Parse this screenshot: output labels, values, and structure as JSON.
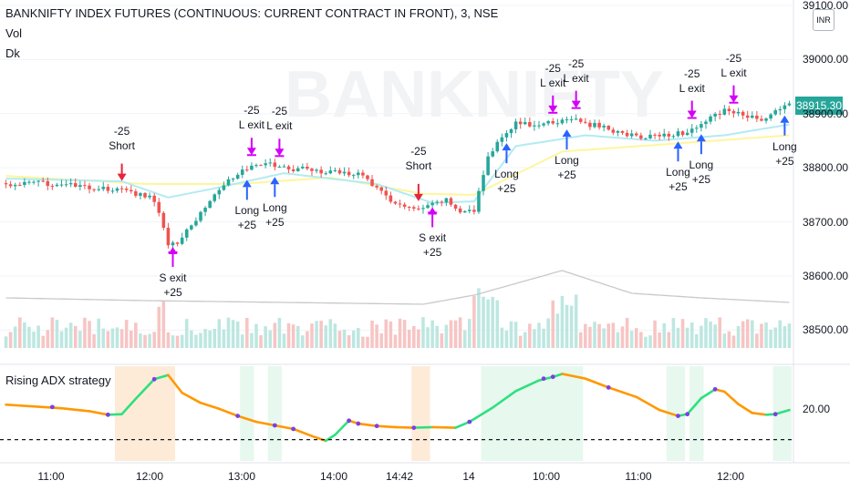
{
  "header": {
    "title": "BANKNIFTY INDEX FUTURES (CONTINUOUS: CURRENT CONTRACT IN FRONT), 3, NSE",
    "vol_label": "Vol",
    "dk_label": "Dk",
    "currency": "INR",
    "watermark": "BANKNIFTY"
  },
  "indicator": {
    "title": "Rising ADX strategy"
  },
  "last_price": "38915.30",
  "colors": {
    "up": "#26a69a",
    "down": "#ef5350",
    "ma_cyan": "#b2ebf2",
    "ma_yellow": "#fff59d",
    "adx_up": "#2ee07f",
    "adx_down": "#ff9800",
    "adx_dot": "#7b3fe4",
    "bg_green": "#e7f8ee",
    "bg_orange": "#fdebd8",
    "arrow_red": "#e8253a",
    "arrow_blue": "#2962ff",
    "arrow_magenta": "#d500f9",
    "price_tag": "#26a69a"
  },
  "chart_data": {
    "type": "candlestick",
    "symbol": "BANKNIFTY1!",
    "timeframe": "3",
    "y_axis": {
      "ticks": [
        "38500.00",
        "38600.00",
        "38700.00",
        "38800.00",
        "38900.00",
        "39000.00",
        "39100.00"
      ],
      "ylim": [
        38430,
        39110
      ]
    },
    "x_axis": {
      "ticks": [
        "11:00",
        "12:00",
        "13:00",
        "14:00",
        "14:42",
        "14",
        "10:00",
        "11:00",
        "12:00"
      ]
    },
    "close_path": [
      [
        0,
        38768
      ],
      [
        6,
        38772
      ],
      [
        12,
        38770
      ],
      [
        18,
        38762
      ],
      [
        24,
        38760
      ],
      [
        28,
        38752
      ],
      [
        31,
        38748
      ],
      [
        33,
        38720
      ],
      [
        35,
        38660
      ],
      [
        37,
        38660
      ],
      [
        39,
        38690
      ],
      [
        41,
        38705
      ],
      [
        44,
        38740
      ],
      [
        47,
        38770
      ],
      [
        50,
        38790
      ],
      [
        53,
        38800
      ],
      [
        56,
        38810
      ],
      [
        59,
        38800
      ],
      [
        62,
        38798
      ],
      [
        65,
        38800
      ],
      [
        68,
        38790
      ],
      [
        71,
        38798
      ],
      [
        74,
        38785
      ],
      [
        77,
        38790
      ],
      [
        80,
        38760
      ],
      [
        83,
        38740
      ],
      [
        86,
        38728
      ],
      [
        89,
        38720
      ],
      [
        92,
        38732
      ],
      [
        95,
        38740
      ],
      [
        98,
        38720
      ],
      [
        101,
        38720
      ],
      [
        104,
        38820
      ],
      [
        107,
        38860
      ],
      [
        110,
        38882
      ],
      [
        113,
        38880
      ],
      [
        116,
        38880
      ],
      [
        119,
        38885
      ],
      [
        122,
        38892
      ],
      [
        125,
        38880
      ],
      [
        128,
        38878
      ],
      [
        131,
        38868
      ],
      [
        134,
        38862
      ],
      [
        137,
        38855
      ],
      [
        140,
        38860
      ],
      [
        143,
        38862
      ],
      [
        146,
        38865
      ],
      [
        149,
        38870
      ],
      [
        152,
        38895
      ],
      [
        155,
        38905
      ],
      [
        158,
        38900
      ],
      [
        161,
        38892
      ],
      [
        163,
        38890
      ],
      [
        166,
        38905
      ],
      [
        169,
        38915
      ]
    ],
    "ma_fast_path": [
      [
        0,
        38780
      ],
      [
        25,
        38775
      ],
      [
        35,
        38745
      ],
      [
        45,
        38762
      ],
      [
        60,
        38790
      ],
      [
        80,
        38770
      ],
      [
        92,
        38735
      ],
      [
        101,
        38738
      ],
      [
        110,
        38840
      ],
      [
        125,
        38860
      ],
      [
        140,
        38850
      ],
      [
        155,
        38860
      ],
      [
        169,
        38880
      ]
    ],
    "ma_slow_path": [
      [
        0,
        38785
      ],
      [
        30,
        38770
      ],
      [
        50,
        38770
      ],
      [
        70,
        38782
      ],
      [
        90,
        38752
      ],
      [
        101,
        38750
      ],
      [
        120,
        38830
      ],
      [
        140,
        38842
      ],
      [
        169,
        38860
      ]
    ],
    "volume_ma_path": [
      [
        0,
        55
      ],
      [
        30,
        52
      ],
      [
        60,
        50
      ],
      [
        90,
        48
      ],
      [
        101,
        58
      ],
      [
        120,
        85
      ],
      [
        135,
        60
      ],
      [
        150,
        55
      ],
      [
        169,
        50
      ]
    ],
    "adx_range": [
      10,
      26
    ],
    "adx_path": [
      [
        0,
        19.5
      ],
      [
        6,
        19.2
      ],
      [
        12,
        18.9
      ],
      [
        18,
        18.4
      ],
      [
        22,
        17.8
      ],
      [
        25,
        17.9
      ],
      [
        28,
        20.5
      ],
      [
        32,
        23.8
      ],
      [
        35,
        24.5
      ],
      [
        38,
        21.5
      ],
      [
        42,
        19.8
      ],
      [
        46,
        18.8
      ],
      [
        50,
        17.6
      ],
      [
        54,
        16.6
      ],
      [
        58,
        16.0
      ],
      [
        62,
        15.4
      ],
      [
        66,
        14.2
      ],
      [
        69,
        13.4
      ],
      [
        71,
        14.4
      ],
      [
        74,
        16.8
      ],
      [
        76,
        16.3
      ],
      [
        80,
        15.9
      ],
      [
        84,
        15.7
      ],
      [
        88,
        15.6
      ],
      [
        92,
        15.7
      ],
      [
        97,
        15.6
      ],
      [
        100,
        16.6
      ],
      [
        105,
        19.0
      ],
      [
        110,
        21.8
      ],
      [
        115,
        23.6
      ],
      [
        118,
        24.2
      ],
      [
        120,
        24.7
      ],
      [
        125,
        23.9
      ],
      [
        130,
        22.4
      ],
      [
        136,
        20.8
      ],
      [
        141,
        18.6
      ],
      [
        145,
        17.6
      ],
      [
        147,
        17.9
      ],
      [
        150,
        20.6
      ],
      [
        153,
        22.1
      ],
      [
        155,
        21.7
      ],
      [
        158,
        19.6
      ],
      [
        161,
        18.1
      ],
      [
        164,
        17.8
      ],
      [
        166,
        17.9
      ],
      [
        169,
        18.6
      ]
    ],
    "adx_dots": [
      [
        10,
        19.1
      ],
      [
        22,
        17.8
      ],
      [
        32,
        23.8
      ],
      [
        50,
        17.6
      ],
      [
        58,
        16.0
      ],
      [
        62,
        15.4
      ],
      [
        74,
        16.8
      ],
      [
        76,
        16.3
      ],
      [
        80,
        15.9
      ],
      [
        88,
        15.6
      ],
      [
        100,
        16.6
      ],
      [
        116,
        23.9
      ],
      [
        118,
        24.2
      ],
      [
        130,
        22.4
      ],
      [
        145,
        17.6
      ],
      [
        147,
        17.9
      ],
      [
        153,
        22.1
      ],
      [
        166,
        17.9
      ]
    ],
    "adx_threshold": 13.6,
    "background_zones": [
      {
        "type": "short",
        "from": 24,
        "to": 36
      },
      {
        "type": "long",
        "from": 51,
        "to": 53
      },
      {
        "type": "long",
        "from": 57,
        "to": 59
      },
      {
        "type": "short",
        "from": 88,
        "to": 91
      },
      {
        "type": "long",
        "from": 103,
        "to": 124
      },
      {
        "type": "long",
        "from": 143,
        "to": 146
      },
      {
        "type": "long",
        "from": 148,
        "to": 150
      },
      {
        "type": "long",
        "from": 166,
        "to": 169
      }
    ],
    "signals": [
      {
        "kind": "short",
        "i": 25,
        "text": "-25\nShort"
      },
      {
        "kind": "short_exit",
        "i": 36,
        "text": "S exit\n+25"
      },
      {
        "kind": "long",
        "i": 52,
        "text": "Long\n+25"
      },
      {
        "kind": "long_exit",
        "i": 53,
        "text": "-25\nL exit"
      },
      {
        "kind": "long",
        "i": 58,
        "text": "Long\n+25"
      },
      {
        "kind": "long_exit",
        "i": 59,
        "text": "-25\nL exit"
      },
      {
        "kind": "short",
        "i": 89,
        "text": "-25\nShort"
      },
      {
        "kind": "short_exit",
        "i": 92,
        "text": "S exit\n+25"
      },
      {
        "kind": "long",
        "i": 108,
        "text": "Long\n+25"
      },
      {
        "kind": "long_exit",
        "i": 118,
        "text": "-25\nL exit"
      },
      {
        "kind": "long_exit",
        "i": 123,
        "text": "-25\nL exit"
      },
      {
        "kind": "long",
        "i": 121,
        "text": "Long\n+25"
      },
      {
        "kind": "long",
        "i": 145,
        "text": "Long\n+25"
      },
      {
        "kind": "long_exit",
        "i": 148,
        "text": "-25\nL exit"
      },
      {
        "kind": "long",
        "i": 150,
        "text": "Long\n+25"
      },
      {
        "kind": "long_exit",
        "i": 157,
        "text": "-25\nL exit"
      },
      {
        "kind": "long",
        "i": 168,
        "text": "Long\n+25"
      }
    ]
  }
}
